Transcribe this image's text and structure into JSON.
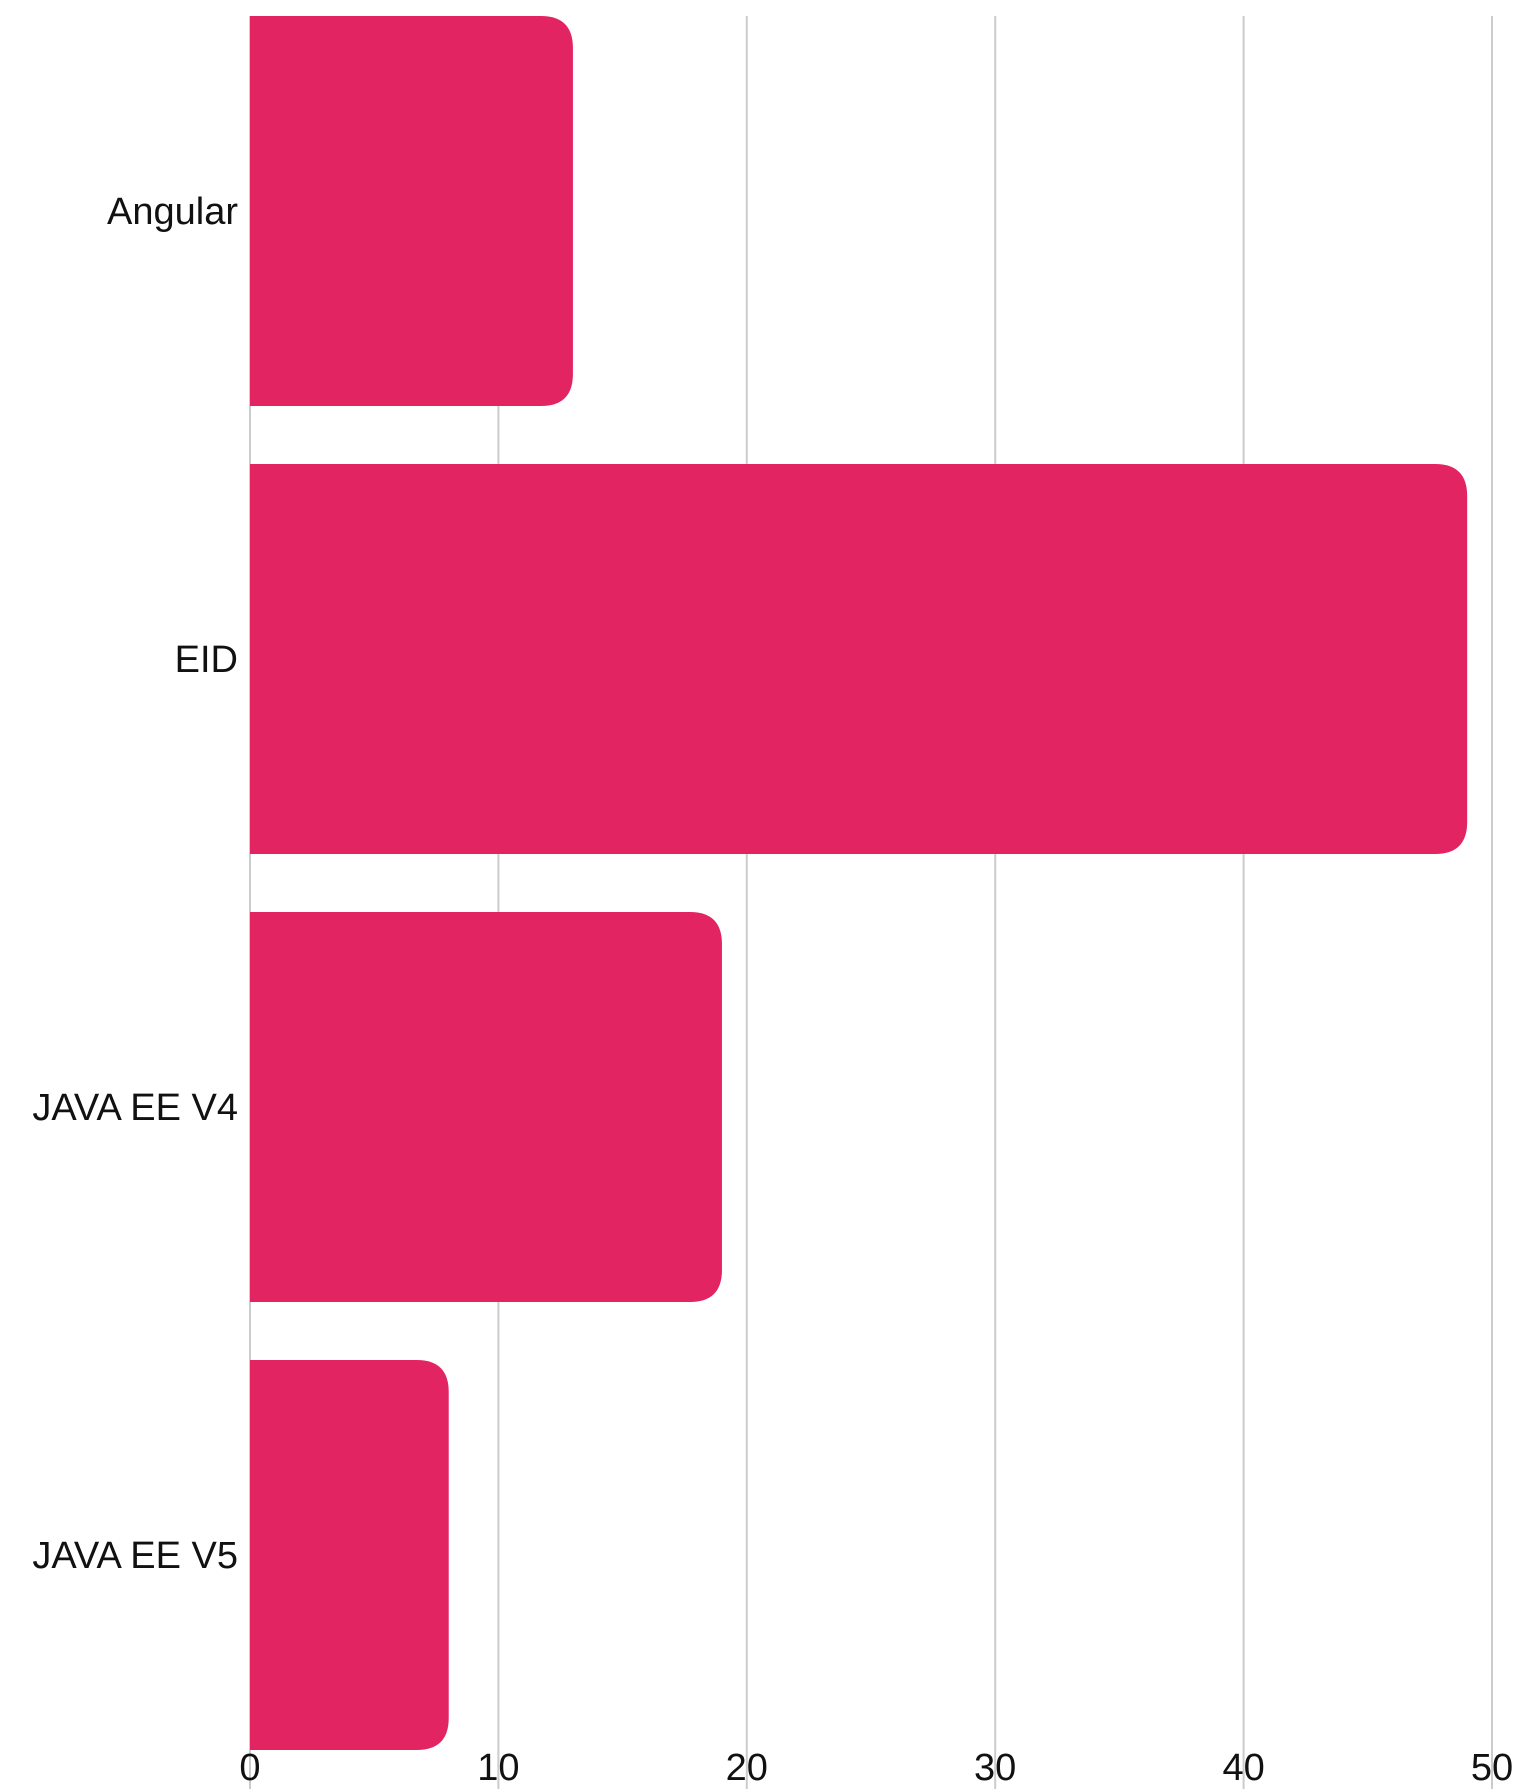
{
  "chart_data": {
    "type": "bar",
    "orientation": "horizontal",
    "categories": [
      "Angular",
      "EID",
      "JAVA EE V4",
      "JAVA EE V5"
    ],
    "values": [
      13,
      49,
      19,
      8
    ],
    "xlim": [
      0,
      50
    ],
    "xticks": [
      "0",
      "10",
      "20",
      "30",
      "40",
      "50"
    ],
    "grid": true,
    "bar_color": "#e32463",
    "title": "",
    "xlabel": "",
    "ylabel": ""
  }
}
